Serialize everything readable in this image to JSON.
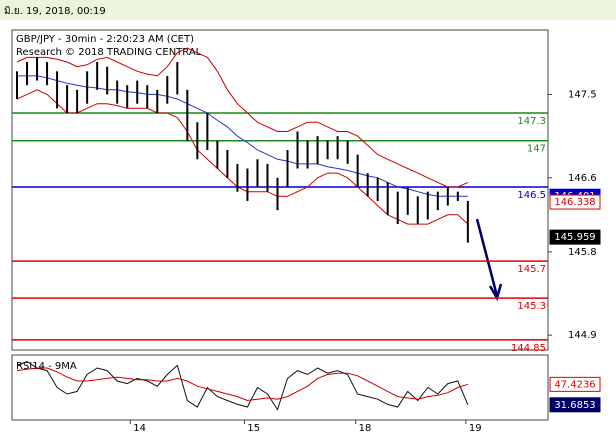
{
  "header": "มิ.ย. 19, 2018, 00:19",
  "chart_data": [
    {
      "type": "ohlc",
      "title": "GBP/JPY - 30min - 2:20:23 AM (CET)",
      "subtitle": "Research © 2018 TRADING CENTRAL",
      "x": [
        0.5,
        1.5,
        2.5,
        3.5,
        4.5,
        5.5,
        6.5,
        7.5,
        8.5,
        9.5,
        10.5,
        11.5,
        12.5,
        13.5,
        14.5,
        15.5,
        16.5,
        17.5,
        18.5,
        19.5,
        20.5,
        21.5,
        22.5,
        23.5,
        24.5,
        25.5,
        26.5,
        27.5,
        28.5,
        29.5,
        30.5,
        31.5,
        32.5,
        33.5,
        34.5,
        35.5,
        36.5,
        37.5,
        38.5,
        39.5,
        40.5,
        41.5,
        42.5,
        43.5,
        44.5,
        45.5
      ],
      "high": [
        147.75,
        147.85,
        147.9,
        147.85,
        147.75,
        147.6,
        147.55,
        147.75,
        147.85,
        147.8,
        147.65,
        147.6,
        147.65,
        147.6,
        147.55,
        147.7,
        147.85,
        147.55,
        147.2,
        147.3,
        147.0,
        146.9,
        146.75,
        146.7,
        146.8,
        146.75,
        146.6,
        146.9,
        147.1,
        147.0,
        147.05,
        147.0,
        147.05,
        147.0,
        146.85,
        146.65,
        146.6,
        146.55,
        146.45,
        146.5,
        146.4,
        146.45,
        146.45,
        146.5,
        146.45,
        146.35
      ],
      "low": [
        147.45,
        147.6,
        147.65,
        147.6,
        147.35,
        147.3,
        147.3,
        147.4,
        147.55,
        147.5,
        147.4,
        147.35,
        147.4,
        147.35,
        147.3,
        147.4,
        147.5,
        147.0,
        146.8,
        146.9,
        146.7,
        146.6,
        146.45,
        146.35,
        146.5,
        146.45,
        146.25,
        146.5,
        146.7,
        146.7,
        146.75,
        146.8,
        146.8,
        146.75,
        146.5,
        146.4,
        146.35,
        146.2,
        146.1,
        146.2,
        146.1,
        146.15,
        146.25,
        146.3,
        146.35,
        145.9
      ],
      "color": "#000000",
      "series": [
        {
          "color": "#cc0000",
          "values": [
            147.85,
            147.9,
            147.9,
            147.9,
            147.88,
            147.85,
            147.8,
            147.82,
            147.88,
            147.9,
            147.85,
            147.8,
            147.75,
            147.72,
            147.7,
            147.8,
            147.95,
            148.0,
            147.95,
            147.9,
            147.75,
            147.55,
            147.4,
            147.3,
            147.2,
            147.15,
            147.1,
            147.1,
            147.15,
            147.2,
            147.2,
            147.15,
            147.1,
            147.1,
            147.05,
            146.95,
            146.85,
            146.8,
            146.75,
            146.7,
            146.65,
            146.6,
            146.55,
            146.5,
            146.5,
            146.55
          ]
        },
        {
          "color": "#cc0000",
          "values": [
            147.45,
            147.5,
            147.55,
            147.5,
            147.4,
            147.3,
            147.3,
            147.35,
            147.4,
            147.4,
            147.38,
            147.35,
            147.35,
            147.35,
            147.3,
            147.3,
            147.25,
            147.1,
            146.9,
            146.8,
            146.7,
            146.6,
            146.5,
            146.45,
            146.45,
            146.45,
            146.4,
            146.4,
            146.45,
            146.5,
            146.6,
            146.65,
            146.65,
            146.6,
            146.5,
            146.4,
            146.3,
            146.2,
            146.15,
            146.1,
            146.1,
            146.1,
            146.15,
            146.2,
            146.2,
            146.1
          ]
        },
        {
          "color": "#2233cc",
          "values": [
            147.7,
            147.7,
            147.7,
            147.68,
            147.65,
            147.62,
            147.6,
            147.58,
            147.57,
            147.55,
            147.55,
            147.53,
            147.52,
            147.5,
            147.5,
            147.48,
            147.45,
            147.4,
            147.35,
            147.3,
            147.22,
            147.15,
            147.05,
            146.98,
            146.9,
            146.85,
            146.8,
            146.78,
            146.75,
            146.75,
            146.75,
            146.72,
            146.7,
            146.68,
            146.65,
            146.62,
            146.6,
            146.55,
            146.5,
            146.48,
            146.45,
            146.42,
            146.4,
            146.4,
            146.4,
            146.4
          ]
        }
      ],
      "levels": [
        {
          "value": 147.3,
          "color": "#1a8a1a"
        },
        {
          "value": 147,
          "color": "#1a8a1a"
        },
        {
          "value": 146.5,
          "color": "#0000cc"
        },
        {
          "value": 145.7,
          "color": "#dd0000"
        },
        {
          "value": 145.3,
          "color": "#dd0000"
        },
        {
          "value": 144.85,
          "color": "#dd0000"
        }
      ],
      "markers": [
        {
          "value": 146.401,
          "color": "#0000cc"
        },
        {
          "value": 146.338,
          "color": "#dd0000"
        },
        {
          "value": 145.959,
          "color": "#000000"
        }
      ],
      "xlim": [
        0,
        53.5
      ],
      "xticks": [
        {
          "value": 11.8,
          "label": "14"
        },
        {
          "value": 23.2,
          "label": "15"
        },
        {
          "value": 34.3,
          "label": "18"
        },
        {
          "value": 45.3,
          "label": "19"
        }
      ],
      "ylim": [
        144.74,
        148.196
      ],
      "yticks": [
        147.5,
        146.6,
        145.8,
        144.9
      ]
    },
    {
      "type": "line",
      "title": "RSI14 - 9MA",
      "x": [
        0.5,
        1.5,
        2.5,
        3.5,
        4.5,
        5.5,
        6.5,
        7.5,
        8.5,
        9.5,
        10.5,
        11.5,
        12.5,
        13.5,
        14.5,
        15.5,
        16.5,
        17.5,
        18.5,
        19.5,
        20.5,
        21.5,
        22.5,
        23.5,
        24.5,
        25.5,
        26.5,
        27.5,
        28.5,
        29.5,
        30.5,
        31.5,
        32.5,
        33.5,
        34.5,
        35.5,
        36.5,
        37.5,
        38.5,
        39.5,
        40.5,
        41.5,
        42.5,
        43.5,
        44.5,
        45.5
      ],
      "series": [
        {
          "color": "#111111",
          "values": [
            62,
            65,
            60,
            58,
            45,
            40,
            42,
            55,
            60,
            58,
            50,
            48,
            52,
            50,
            46,
            55,
            62,
            35,
            30,
            45,
            38,
            35,
            32,
            30,
            45,
            40,
            28,
            52,
            58,
            55,
            60,
            56,
            58,
            55,
            40,
            38,
            36,
            32,
            30,
            42,
            35,
            45,
            40,
            48,
            50,
            31.6853
          ]
        },
        {
          "color": "#cc0000",
          "values": [
            58,
            59,
            60,
            60,
            57,
            53,
            50,
            50,
            51,
            52,
            53,
            52,
            51,
            51,
            50,
            50,
            52,
            50,
            46,
            44,
            42,
            40,
            38,
            35,
            36,
            37,
            36,
            38,
            42,
            46,
            52,
            55,
            56,
            56,
            54,
            50,
            46,
            42,
            38,
            37,
            36,
            38,
            39,
            41,
            45,
            47.4236
          ]
        }
      ],
      "markers": [
        {
          "value": 47.4236,
          "color": "#dd0000"
        },
        {
          "value": 31.6853,
          "color": "#000066"
        }
      ],
      "xlim": [
        0,
        53.5
      ],
      "ylim": [
        20,
        70
      ]
    }
  ]
}
